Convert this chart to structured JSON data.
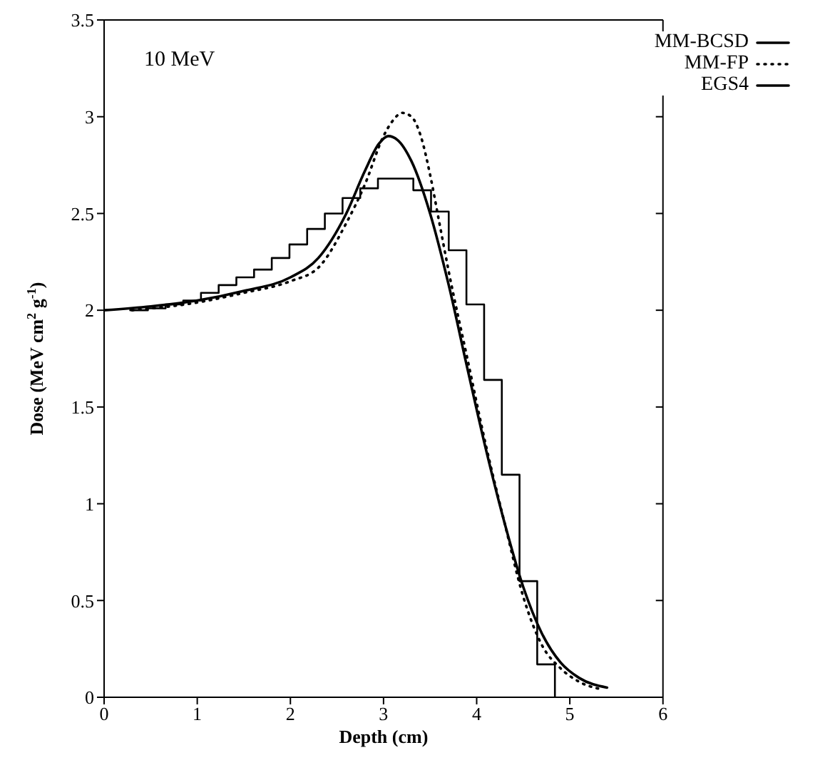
{
  "chart_data": {
    "type": "line",
    "xlabel": "Depth (cm)",
    "ylabel": "Dose (MeV cm$^{2}$ g$^{-1}$)",
    "annotations": [
      "10 MeV"
    ],
    "xlim": [
      0,
      6
    ],
    "xticks": [
      0,
      1,
      2,
      3,
      4,
      5,
      6
    ],
    "ylim": [
      0,
      3.5
    ],
    "yticks": [
      0,
      0.5,
      1,
      1.5,
      2,
      2.5,
      3,
      3.5
    ],
    "grid": false,
    "legend": "top right",
    "series": [
      {
        "name": "MM-BCSD",
        "type": "line",
        "color": "#000000",
        "line_style": "solid",
        "x": [
          0,
          0.5,
          1.0,
          1.5,
          2.0,
          2.3,
          2.6,
          2.8,
          2.95,
          3.05,
          3.15,
          3.3,
          3.5,
          3.7,
          3.9,
          4.1,
          4.3,
          4.5,
          4.7,
          4.9,
          5.1,
          5.4
        ],
        "values": [
          2.0,
          2.02,
          2.05,
          2.1,
          2.17,
          2.27,
          2.5,
          2.72,
          2.86,
          2.9,
          2.88,
          2.77,
          2.5,
          2.13,
          1.7,
          1.28,
          0.9,
          0.57,
          0.33,
          0.18,
          0.1,
          0.05
        ]
      },
      {
        "name": "MM-FP",
        "type": "line",
        "color": "#000000",
        "line_style": "dotted",
        "x": [
          0.3,
          1.0,
          1.5,
          2.0,
          2.3,
          2.6,
          2.8,
          3.0,
          3.1,
          3.2,
          3.3,
          3.4,
          3.5,
          3.6,
          3.7,
          3.9,
          4.1,
          4.3,
          4.5,
          4.7,
          4.9,
          5.1,
          5.35
        ],
        "values": [
          2.0,
          2.04,
          2.09,
          2.15,
          2.22,
          2.45,
          2.65,
          2.9,
          2.98,
          3.02,
          3.0,
          2.9,
          2.7,
          2.45,
          2.2,
          1.75,
          1.3,
          0.9,
          0.52,
          0.27,
          0.15,
          0.08,
          0.04
        ]
      },
      {
        "name": "EGS4",
        "type": "step",
        "color": "#000000",
        "line_style": "solid",
        "x": [
          0.28,
          0.47,
          0.66,
          0.85,
          1.04,
          1.23,
          1.42,
          1.61,
          1.8,
          1.99,
          2.18,
          2.37,
          2.56,
          2.75,
          2.94,
          3.13,
          3.32,
          3.51,
          3.7,
          3.89,
          4.08,
          4.27,
          4.46,
          4.65,
          4.84
        ],
        "values": [
          2.0,
          2.01,
          2.03,
          2.05,
          2.09,
          2.13,
          2.17,
          2.21,
          2.27,
          2.34,
          2.42,
          2.5,
          2.58,
          2.63,
          2.68,
          2.68,
          2.62,
          2.51,
          2.31,
          2.03,
          1.64,
          1.15,
          0.6,
          0.17,
          0
        ]
      }
    ]
  }
}
